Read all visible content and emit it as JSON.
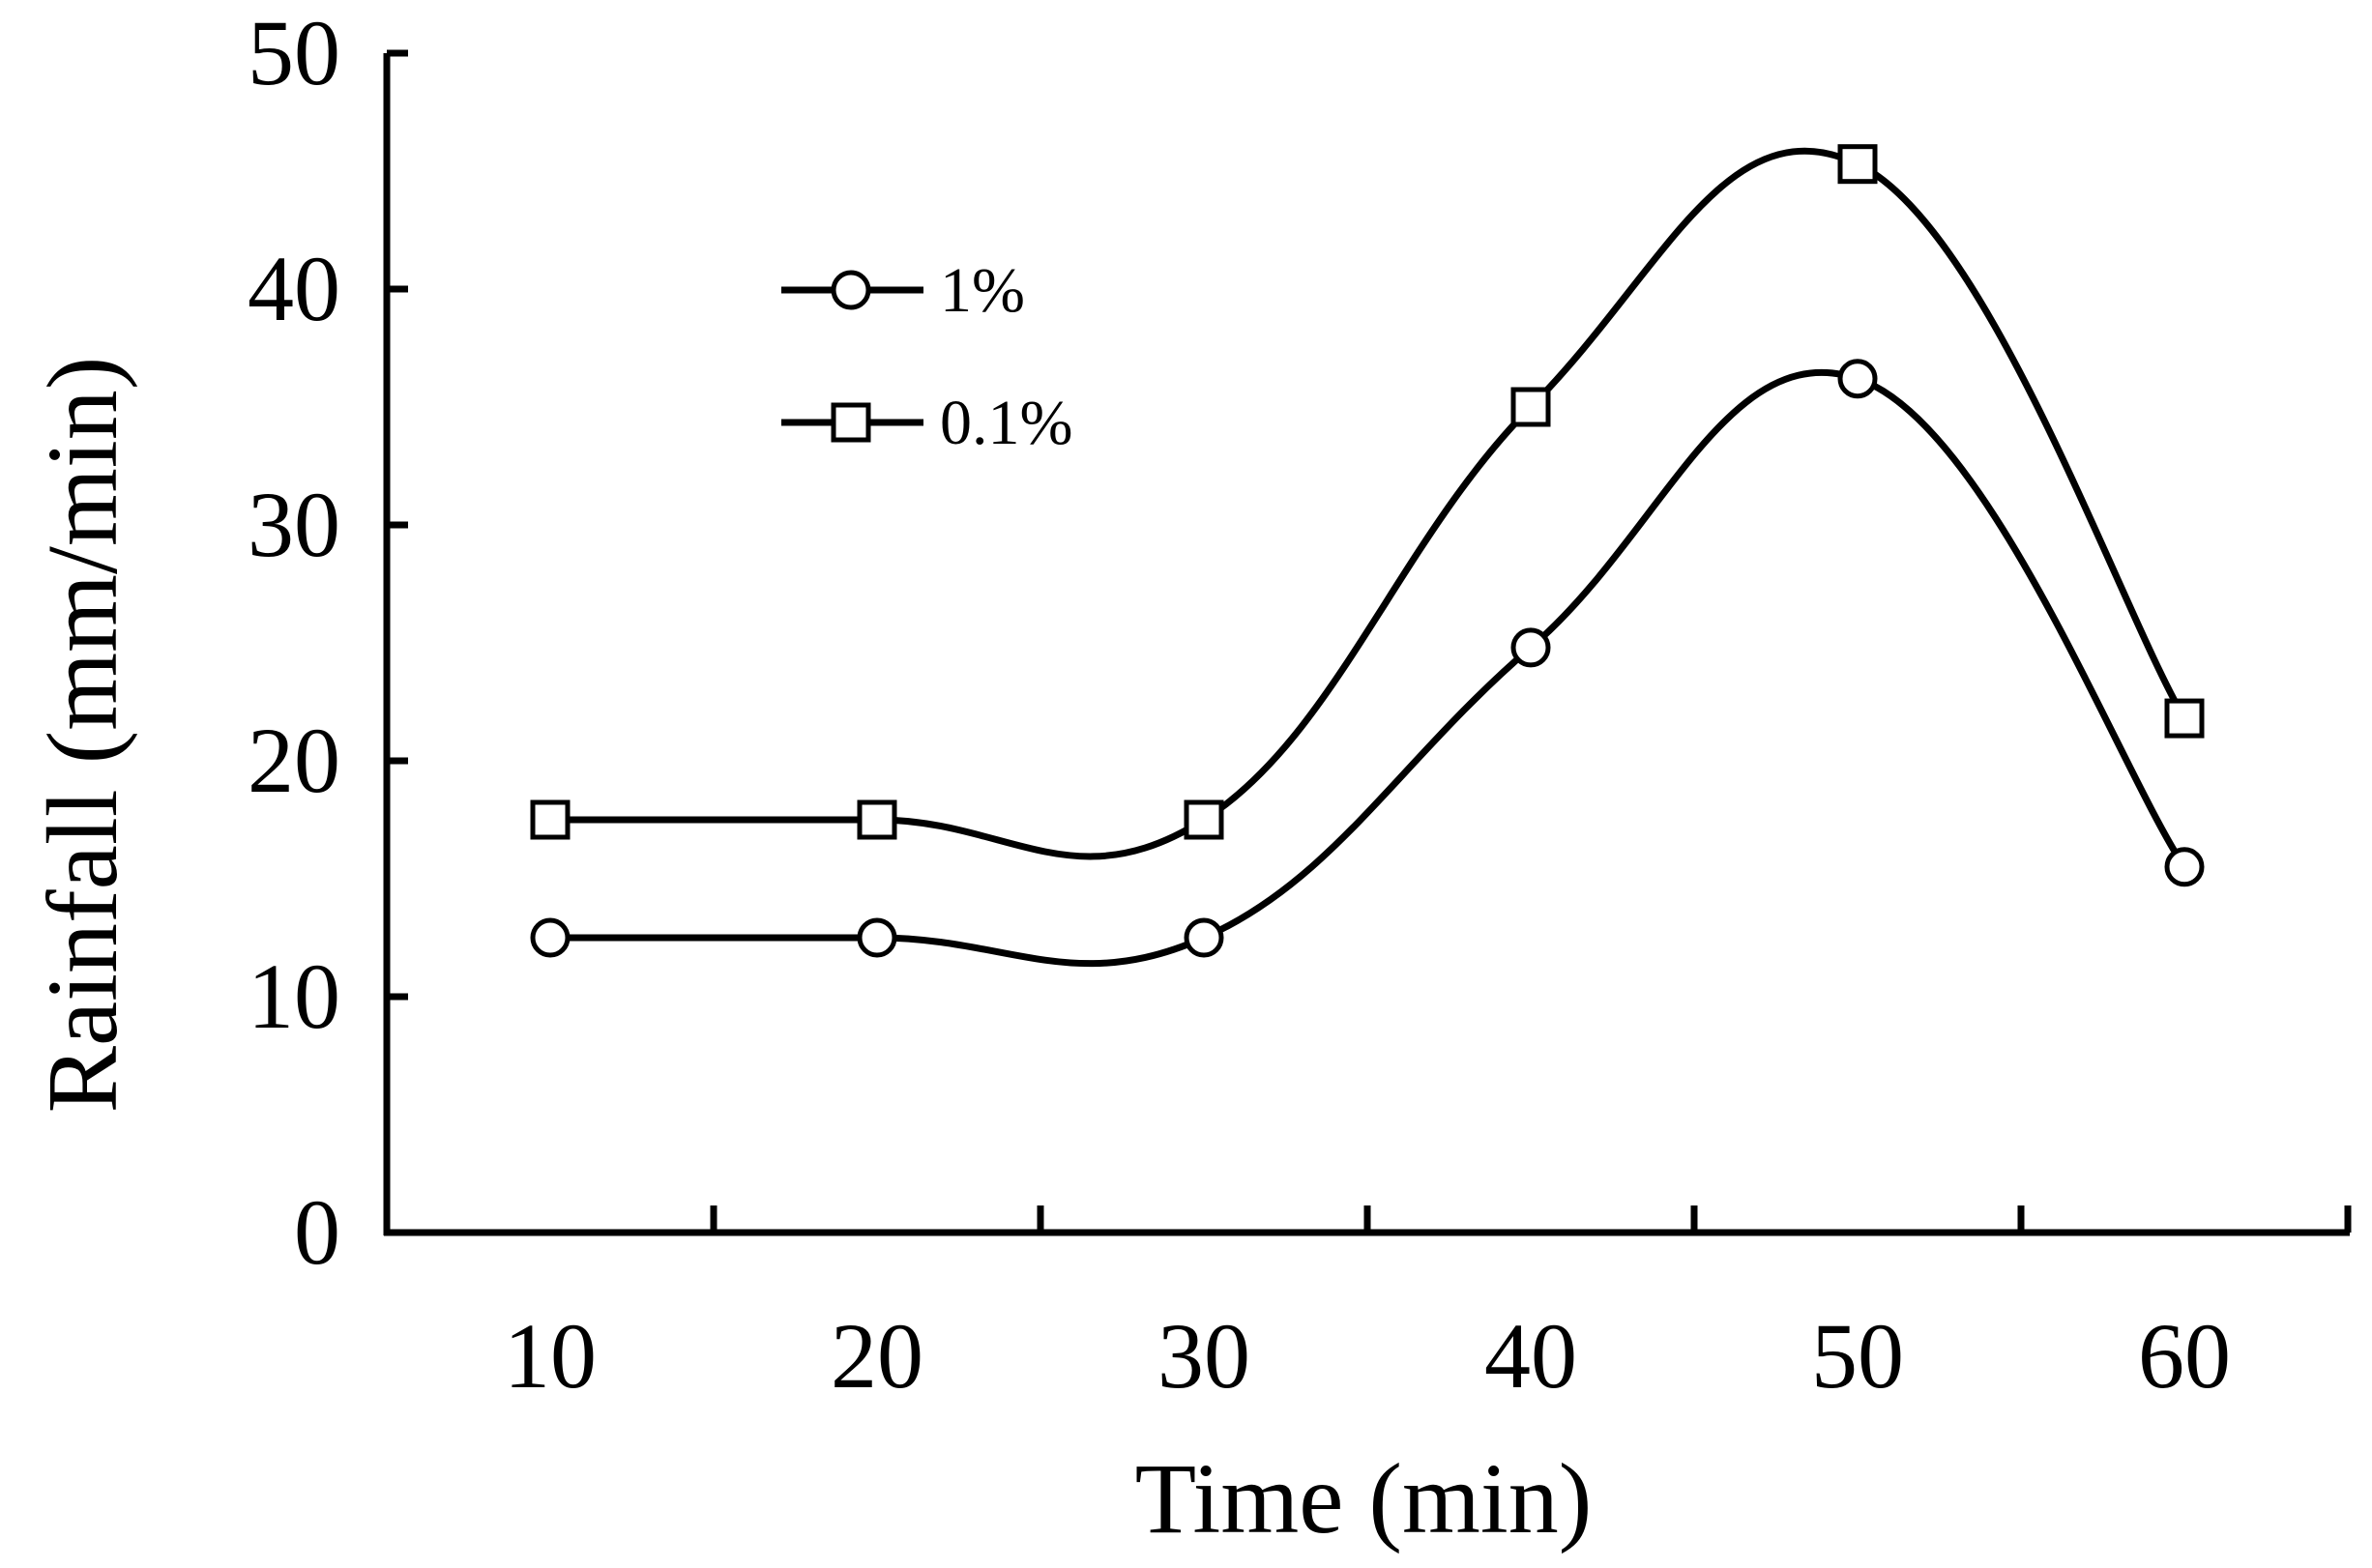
{
  "chart_data": {
    "type": "line",
    "title": "",
    "xlabel": "Time (min)",
    "ylabel": "Rainfall (mm/min)",
    "categories": [
      "10",
      "20",
      "30",
      "40",
      "50",
      "60"
    ],
    "x": [
      10,
      20,
      30,
      40,
      50,
      60
    ],
    "ylim": [
      0,
      50
    ],
    "yticks": [
      "0",
      "10",
      "20",
      "30",
      "40",
      "50"
    ],
    "grid": false,
    "legend_position": "top-left",
    "series": [
      {
        "name": "1%",
        "marker": "circle",
        "values": [
          12.5,
          12.5,
          12.5,
          24.8,
          36.2,
          15.5
        ],
        "color": "#000000"
      },
      {
        "name": "0.1%",
        "marker": "square",
        "values": [
          17.5,
          17.5,
          17.5,
          35.0,
          45.3,
          21.8
        ],
        "color": "#000000"
      }
    ]
  }
}
